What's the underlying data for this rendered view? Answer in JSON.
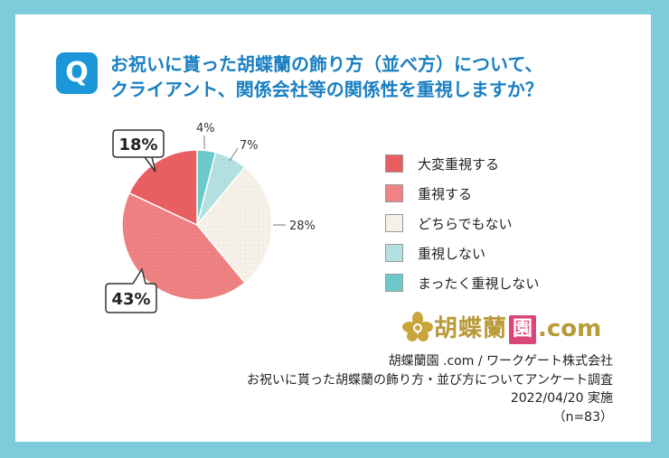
{
  "question": {
    "badge": "Q",
    "line1": "お祝いに貰った胡蝶蘭の飾り方（並べ方）について、",
    "line2": "クライアント、関係会社等の関係性を重視しますか？"
  },
  "chart_data": {
    "type": "pie",
    "categories": [
      "大変重視する",
      "重視する",
      "どちらでもない",
      "重視しない",
      "まったく重視しない"
    ],
    "values": [
      18,
      43,
      28,
      7,
      4
    ],
    "labels": [
      "18%",
      "43%",
      "28%",
      "7%",
      "4%"
    ],
    "colors": [
      "#e85f62",
      "#ef8383",
      "#f5f1e8",
      "#b5e0e2",
      "#6cc9c9"
    ],
    "legend_position": "right"
  },
  "logo": {
    "kanji": "胡蝶蘭",
    "boxed": "園",
    "suffix": ".com"
  },
  "footer": {
    "line1": "胡蝶蘭園 .com / ワークゲート株式会社",
    "line2": "お祝いに貰った胡蝶蘭の飾り方・並び方についてアンケート調査",
    "line3": "2022/04/20 実施",
    "line4": "（n=83）"
  }
}
